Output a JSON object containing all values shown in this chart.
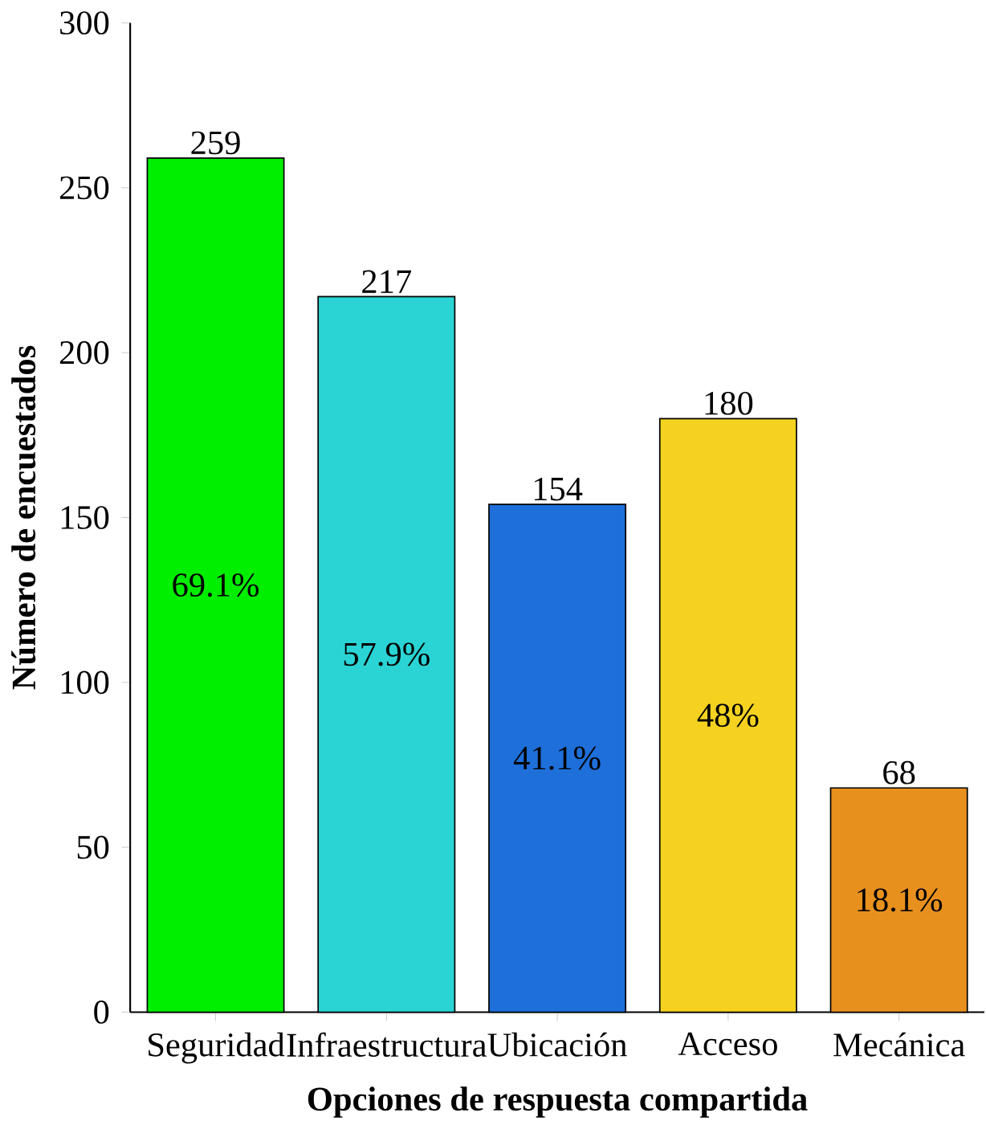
{
  "chart_data": {
    "type": "bar",
    "xlabel": "Opciones de respuesta compartida",
    "ylabel": "Número de encuestados",
    "categories": [
      "Seguridad",
      "Infraestructura",
      "Ubicación",
      "Acceso",
      "Mecánica"
    ],
    "values": [
      259,
      217,
      154,
      180,
      68
    ],
    "colors": [
      "#00ee00",
      "#2ad4d4",
      "#1e6fd9",
      "#f5d21f",
      "#e8901e"
    ],
    "ylim": [
      0,
      300
    ],
    "yticks": [
      0,
      50,
      100,
      150,
      200,
      250,
      300
    ],
    "data_labels": true,
    "annotations": [
      "69.1%",
      "57.9%",
      "41.1%",
      "48%",
      "18.1%"
    ]
  }
}
